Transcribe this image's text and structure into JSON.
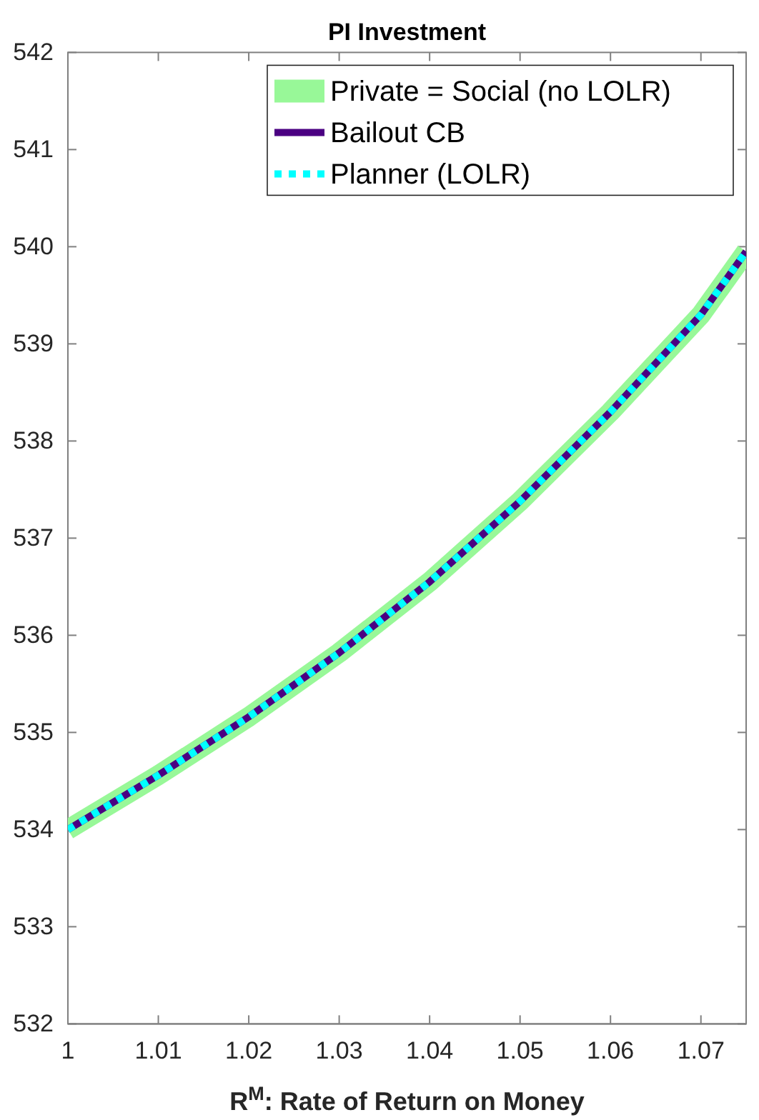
{
  "chart_data": {
    "type": "line",
    "title": "PI Investment",
    "xlabel": "R$^{M}$: Rate of Return on Money",
    "x": [
      1,
      1.01,
      1.02,
      1.03,
      1.04,
      1.05,
      1.06,
      1.07,
      1.075
    ],
    "series": [
      {
        "name": "Private = Social (no LOLR)",
        "color": "#98f898",
        "line_style": "solid",
        "values": [
          534.0,
          534.56,
          535.16,
          535.82,
          536.55,
          537.38,
          538.3,
          539.3,
          539.95
        ]
      },
      {
        "name": "Bailout CB",
        "color": "#4b0082",
        "line_style": "solid",
        "values": [
          534.0,
          534.56,
          535.16,
          535.82,
          536.55,
          537.38,
          538.3,
          539.3,
          539.95
        ]
      },
      {
        "name": "Planner (LOLR)",
        "color": "#00ffff",
        "line_style": "dotted",
        "values": [
          534.0,
          534.56,
          535.16,
          535.82,
          536.55,
          537.38,
          538.3,
          539.3,
          539.95
        ]
      }
    ],
    "xlim": [
      1,
      1.075
    ],
    "xticks": [
      1,
      1.01,
      1.02,
      1.03,
      1.04,
      1.05,
      1.06,
      1.07
    ],
    "ylim": [
      532,
      542
    ],
    "yticks": [
      532,
      533,
      534,
      535,
      536,
      537,
      538,
      539,
      540,
      541,
      542
    ],
    "grid": false,
    "legend": "top right",
    "marker": "none"
  }
}
